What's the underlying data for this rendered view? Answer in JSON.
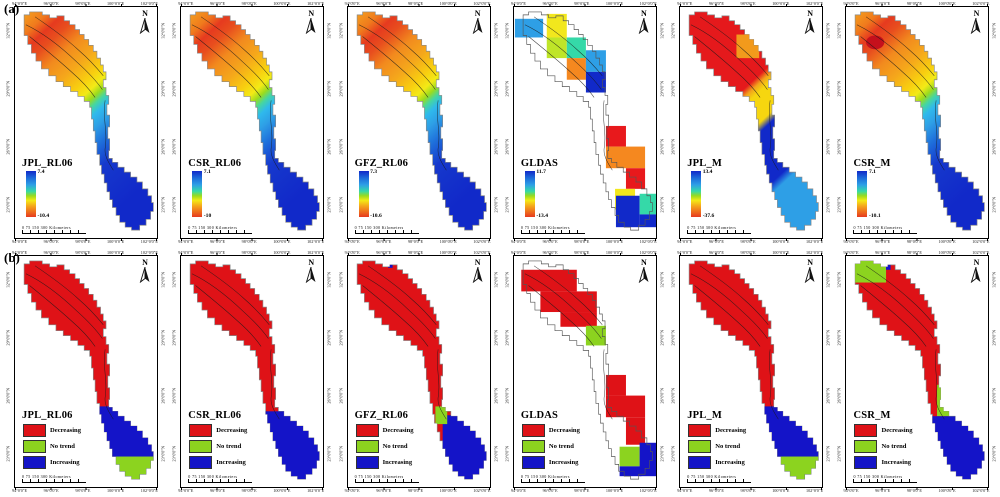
{
  "figure": {
    "panel_label_a": "(a)",
    "panel_label_b": "(b)",
    "north_label": "N",
    "scalebar_label": "0  75  150       300 Kilometers",
    "axes": {
      "lon": [
        "94°0'0\"E",
        "96°0'0\"E",
        "98°0'0\"E",
        "100°0'0\"E",
        "102°0'0\"E"
      ],
      "lat": [
        "32°0'0\"N",
        "29°0'0\"N",
        "26°0'0\"N",
        "23°0'0\"N"
      ]
    }
  },
  "colors": {
    "trend_decreasing": "#DF1217",
    "trend_no_trend": "#8CD31F",
    "trend_increasing": "#1414C8",
    "colorbar_top_blue": "#1129C9",
    "colorbar_bottom_red": "#E63A1F"
  },
  "row_a": {
    "description": "trend magnitude maps with continuous colorbars",
    "panels": [
      {
        "name": "JPL_RL06",
        "max": "7.4",
        "min": "-10.4"
      },
      {
        "name": "CSR_RL06",
        "max": "7.1",
        "min": "-10"
      },
      {
        "name": "GFZ_RL06",
        "max": "7.3",
        "min": "-10.6"
      },
      {
        "name": "GLDAS",
        "max": "11.7",
        "min": "-13.4"
      },
      {
        "name": "JPL_M",
        "max": "13.4",
        "min": "-37.6"
      },
      {
        "name": "CSR_M",
        "max": "7.1",
        "min": "-10.1"
      }
    ]
  },
  "row_b": {
    "description": "trend significance category maps",
    "panels": [
      {
        "name": "JPL_RL06"
      },
      {
        "name": "CSR_RL06"
      },
      {
        "name": "GFZ_RL06"
      },
      {
        "name": "GLDAS"
      },
      {
        "name": "JPL_M"
      },
      {
        "name": "CSR_M"
      }
    ],
    "legend": [
      {
        "label": "Decreasing",
        "color": "#DF1217"
      },
      {
        "label": "No trend",
        "color": "#8CD31F"
      },
      {
        "label": "Increasing",
        "color": "#1414C8"
      }
    ]
  }
}
